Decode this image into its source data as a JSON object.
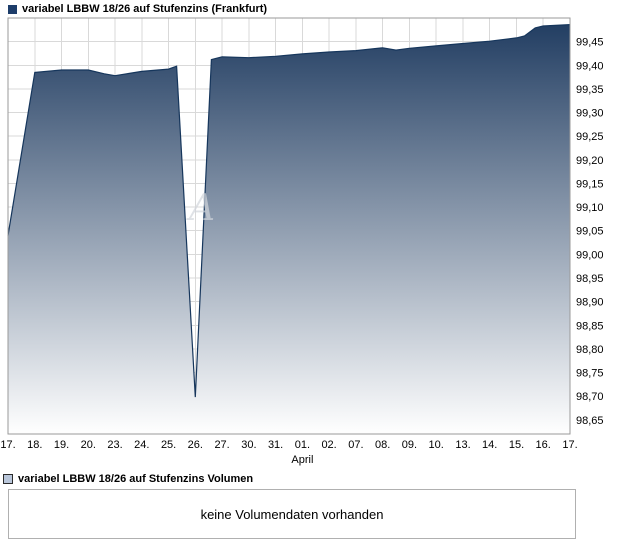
{
  "page": {
    "background": "#ffffff"
  },
  "legend_top": {
    "label": "variabel LBBW 18/26 auf Stufenzins (Frankfurt)",
    "swatch_color": "#1d3d6a"
  },
  "legend_bottom": {
    "label": "variabel LBBW 18/26 auf Stufenzins Volumen",
    "swatch_color": "#b9c6da"
  },
  "volume_panel": {
    "message": "keine Volumendaten vorhanden"
  },
  "watermark": "A",
  "chart_data": {
    "type": "area",
    "title": "variabel LBBW 18/26 auf Stufenzins (Frankfurt)",
    "x_tick_labels": [
      "17.",
      "18.",
      "19.",
      "20.",
      "23.",
      "24.",
      "25.",
      "26.",
      "27.",
      "30.",
      "31.",
      "01.",
      "02.",
      "07.",
      "08.",
      "09.",
      "10.",
      "13.",
      "14.",
      "15.",
      "16.",
      "17."
    ],
    "x_axis_label": "April",
    "y_tick_labels": [
      "99,45",
      "99,40",
      "99,35",
      "99,30",
      "99,25",
      "99,20",
      "99,15",
      "99,10",
      "99,05",
      "99,00",
      "98,95",
      "98,90",
      "98,85",
      "98,80",
      "98,75",
      "98,70",
      "98,65"
    ],
    "ylim": [
      98.62,
      99.5
    ],
    "grid": true,
    "legend_position": "top-left",
    "line_color": "#16365c",
    "fill_gradient": [
      "#1f3b60",
      "#ffffff"
    ],
    "series": [
      {
        "name": "variabel LBBW 18/26 auf Stufenzins (Frankfurt)",
        "points": [
          [
            0,
            99.04
          ],
          [
            1,
            99.385
          ],
          [
            2,
            99.39
          ],
          [
            3,
            99.39
          ],
          [
            3.6,
            99.382
          ],
          [
            4,
            99.378
          ],
          [
            5,
            99.387
          ],
          [
            6,
            99.392
          ],
          [
            6.3,
            99.398
          ],
          [
            7,
            98.698
          ],
          [
            7.6,
            99.412
          ],
          [
            8,
            99.418
          ],
          [
            9,
            99.416
          ],
          [
            10,
            99.419
          ],
          [
            11,
            99.424
          ],
          [
            12,
            99.428
          ],
          [
            13,
            99.431
          ],
          [
            14,
            99.437
          ],
          [
            14.5,
            99.432
          ],
          [
            15,
            99.436
          ],
          [
            16,
            99.441
          ],
          [
            17,
            99.446
          ],
          [
            18,
            99.451
          ],
          [
            19,
            99.458
          ],
          [
            19.3,
            99.462
          ],
          [
            19.7,
            99.479
          ],
          [
            20,
            99.483
          ],
          [
            21,
            99.486
          ]
        ]
      }
    ]
  }
}
